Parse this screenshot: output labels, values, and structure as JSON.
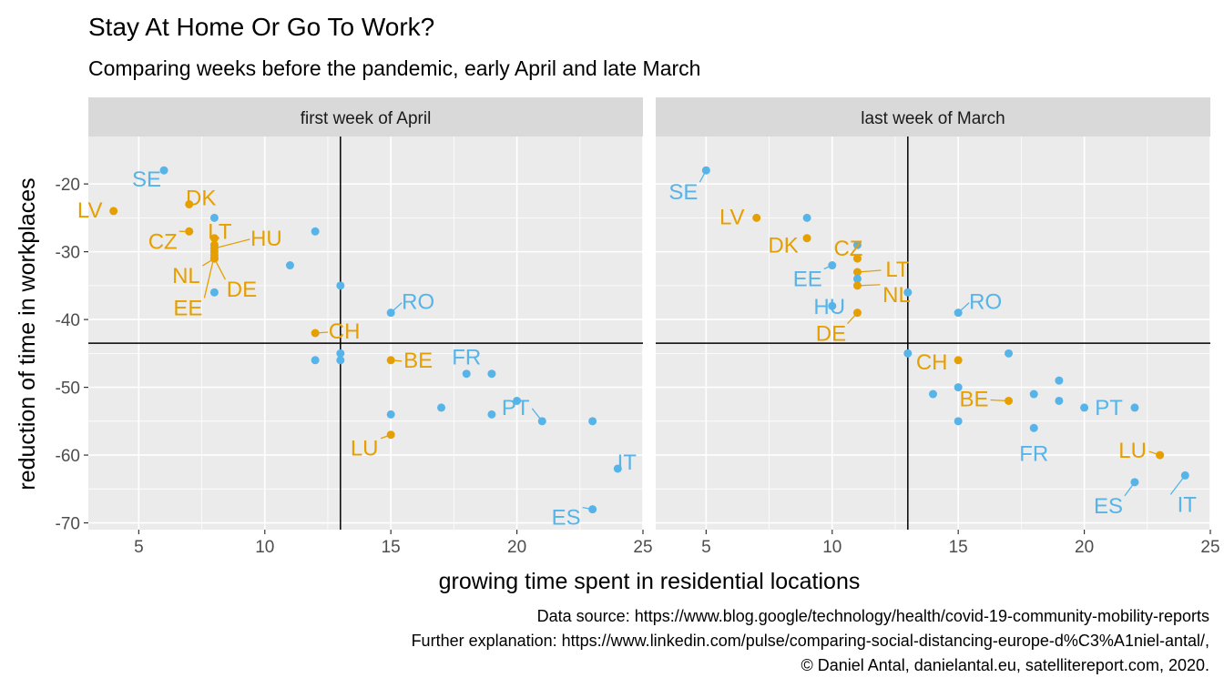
{
  "chart_data": {
    "type": "scatter",
    "title": "Stay At Home Or Go To Work?",
    "subtitle": "Comparing weeks before the pandemic, early April and late March",
    "xlabel": "growing time spent in residential locations",
    "ylabel": "reduction of time in workplaces",
    "xlim": [
      3,
      25
    ],
    "ylim": [
      -71,
      -13
    ],
    "x_ticks": [
      5,
      10,
      15,
      20,
      25
    ],
    "y_ticks": [
      -20,
      -30,
      -40,
      -50,
      -60,
      -70
    ],
    "grid": true,
    "colors": {
      "highlight": "#E69F00",
      "other": "#56B4E9"
    },
    "caption": [
      "Data source: https://www.blog.google/technology/health/covid-19-community-mobility-reports",
      "Further explanation: https://www.linkedin.com/pulse/comparing-social-distancing-europe-d%C3%A1niel-antal/,",
      "© Daniel Antal, danielantal.eu, satellitereport.com, 2020."
    ],
    "panels": [
      {
        "strip": "first week of April",
        "vline": 13,
        "hline": -43.5,
        "points": [
          {
            "x": 4,
            "y": -24,
            "group": "highlight",
            "label": "LV"
          },
          {
            "x": 6,
            "y": -18,
            "group": "other",
            "label": "SE"
          },
          {
            "x": 7,
            "y": -23,
            "group": "highlight",
            "label": "DK"
          },
          {
            "x": 7,
            "y": -27,
            "group": "highlight",
            "label": "CZ"
          },
          {
            "x": 8,
            "y": -25,
            "group": "other"
          },
          {
            "x": 8,
            "y": -28,
            "group": "highlight",
            "label": "LT"
          },
          {
            "x": 8,
            "y": -29,
            "group": "highlight"
          },
          {
            "x": 8,
            "y": -30,
            "group": "highlight"
          },
          {
            "x": 8,
            "y": -31,
            "group": "highlight",
            "label": "NL"
          },
          {
            "x": 8,
            "y": -29.5,
            "group": "highlight",
            "label": "HU"
          },
          {
            "x": 8,
            "y": -31,
            "group": "highlight",
            "label": "DE"
          },
          {
            "x": 8,
            "y": -30.5,
            "group": "highlight",
            "label": "EE"
          },
          {
            "x": 8,
            "y": -36,
            "group": "other"
          },
          {
            "x": 11,
            "y": -32,
            "group": "other"
          },
          {
            "x": 12,
            "y": -27,
            "group": "other"
          },
          {
            "x": 12,
            "y": -42,
            "group": "highlight",
            "label": "CH"
          },
          {
            "x": 12,
            "y": -46,
            "group": "other"
          },
          {
            "x": 13,
            "y": -35,
            "group": "other"
          },
          {
            "x": 13,
            "y": -45,
            "group": "other"
          },
          {
            "x": 13,
            "y": -46,
            "group": "other"
          },
          {
            "x": 15,
            "y": -39,
            "group": "other",
            "label": "RO"
          },
          {
            "x": 15,
            "y": -46,
            "group": "highlight",
            "label": "BE"
          },
          {
            "x": 15,
            "y": -54,
            "group": "other"
          },
          {
            "x": 15,
            "y": -57,
            "group": "highlight",
            "label": "LU"
          },
          {
            "x": 17,
            "y": -53,
            "group": "other"
          },
          {
            "x": 18,
            "y": -48,
            "group": "other",
            "label": "FR"
          },
          {
            "x": 19,
            "y": -48,
            "group": "other"
          },
          {
            "x": 19,
            "y": -54,
            "group": "other"
          },
          {
            "x": 20,
            "y": -52,
            "group": "other"
          },
          {
            "x": 21,
            "y": -55,
            "group": "other",
            "label": "PT"
          },
          {
            "x": 23,
            "y": -55,
            "group": "other"
          },
          {
            "x": 23,
            "y": -68,
            "group": "other",
            "label": "ES"
          },
          {
            "x": 24,
            "y": -62,
            "group": "other",
            "label": "IT"
          }
        ]
      },
      {
        "strip": "last week of March",
        "vline": 13,
        "hline": -43.5,
        "points": [
          {
            "x": 5,
            "y": -18,
            "group": "other",
            "label": "SE"
          },
          {
            "x": 7,
            "y": -25,
            "group": "highlight",
            "label": "LV"
          },
          {
            "x": 9,
            "y": -25,
            "group": "other"
          },
          {
            "x": 9,
            "y": -28,
            "group": "highlight",
            "label": "DK"
          },
          {
            "x": 10,
            "y": -32,
            "group": "other",
            "label": "EE"
          },
          {
            "x": 10,
            "y": -38,
            "group": "other",
            "label": "HU"
          },
          {
            "x": 11,
            "y": -29,
            "group": "other"
          },
          {
            "x": 11,
            "y": -31,
            "group": "highlight",
            "label": "CZ"
          },
          {
            "x": 11,
            "y": -33,
            "group": "highlight",
            "label": "LT"
          },
          {
            "x": 11,
            "y": -34,
            "group": "other"
          },
          {
            "x": 11,
            "y": -35,
            "group": "highlight",
            "label": "NL"
          },
          {
            "x": 11,
            "y": -39,
            "group": "highlight",
            "label": "DE"
          },
          {
            "x": 13,
            "y": -36,
            "group": "other"
          },
          {
            "x": 13,
            "y": -45,
            "group": "other"
          },
          {
            "x": 14,
            "y": -51,
            "group": "other"
          },
          {
            "x": 15,
            "y": -39,
            "group": "other",
            "label": "RO"
          },
          {
            "x": 15,
            "y": -46,
            "group": "highlight",
            "label": "CH"
          },
          {
            "x": 15,
            "y": -50,
            "group": "other"
          },
          {
            "x": 15,
            "y": -55,
            "group": "other"
          },
          {
            "x": 17,
            "y": -45,
            "group": "other"
          },
          {
            "x": 17,
            "y": -52,
            "group": "highlight",
            "label": "BE"
          },
          {
            "x": 18,
            "y": -51,
            "group": "other"
          },
          {
            "x": 18,
            "y": -56,
            "group": "other",
            "label": "FR"
          },
          {
            "x": 19,
            "y": -49,
            "group": "other"
          },
          {
            "x": 19,
            "y": -52,
            "group": "other"
          },
          {
            "x": 20,
            "y": -53,
            "group": "other",
            "label": "PT"
          },
          {
            "x": 22,
            "y": -53,
            "group": "other"
          },
          {
            "x": 22,
            "y": -64,
            "group": "other",
            "label": "ES"
          },
          {
            "x": 23,
            "y": -60,
            "group": "highlight",
            "label": "LU"
          },
          {
            "x": 24,
            "y": -63,
            "group": "other",
            "label": "IT"
          }
        ]
      }
    ]
  }
}
